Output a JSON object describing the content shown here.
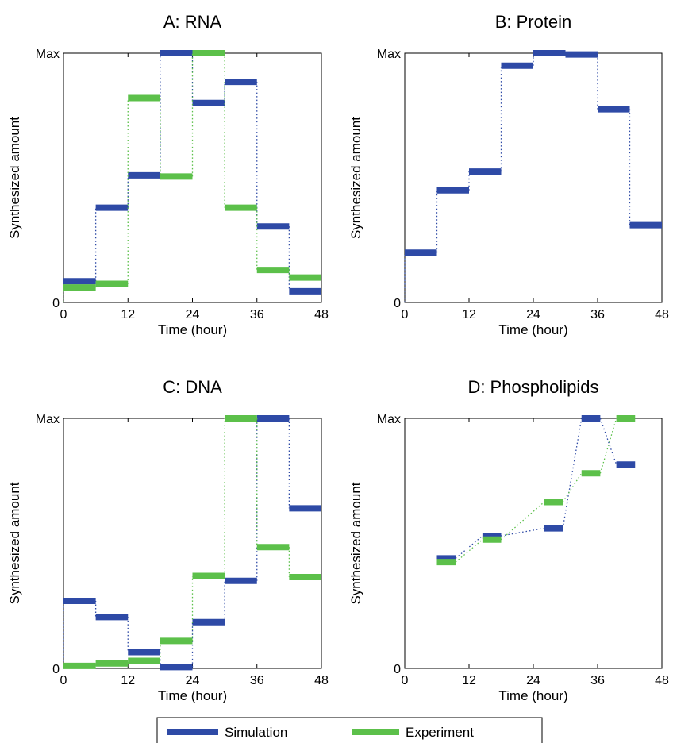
{
  "colors": {
    "simulation": "#2e4aa6",
    "experiment": "#5cc04a"
  },
  "legend": {
    "placement": "bottom-center",
    "items": [
      "Simulation",
      "Experiment"
    ]
  },
  "chart_data": [
    {
      "type": "step",
      "title": "A: RNA",
      "xlabel": "Time (hour)",
      "ylabel": "Synthesized amount",
      "xlim": [
        0,
        48
      ],
      "xticks": [
        0,
        12,
        24,
        36,
        48
      ],
      "ylim": [
        0,
        1
      ],
      "yticks": [
        0,
        1
      ],
      "yticklabels": [
        "0",
        "Max"
      ],
      "grid": false,
      "series": [
        {
          "name": "Simulation",
          "segments": [
            [
              0,
              6,
              0.085
            ],
            [
              6,
              12,
              0.38
            ],
            [
              12,
              18,
              0.51
            ],
            [
              18,
              24,
              1.0
            ],
            [
              24,
              30,
              0.8
            ],
            [
              30,
              36,
              0.885
            ],
            [
              36,
              42,
              0.305
            ],
            [
              42,
              48,
              0.045
            ]
          ]
        },
        {
          "name": "Experiment",
          "segments": [
            [
              0,
              6,
              0.06
            ],
            [
              6,
              12,
              0.075
            ],
            [
              12,
              18,
              0.82
            ],
            [
              18,
              24,
              0.505
            ],
            [
              24,
              30,
              1.0
            ],
            [
              30,
              36,
              0.38
            ],
            [
              36,
              42,
              0.13
            ],
            [
              42,
              48,
              0.1
            ]
          ]
        }
      ]
    },
    {
      "type": "step",
      "title": "B: Protein",
      "xlabel": "Time (hour)",
      "ylabel": "Synthesized amount",
      "xlim": [
        0,
        48
      ],
      "xticks": [
        0,
        12,
        24,
        36,
        48
      ],
      "ylim": [
        0,
        1
      ],
      "yticks": [
        0,
        1
      ],
      "yticklabels": [
        "0",
        "Max"
      ],
      "grid": false,
      "series": [
        {
          "name": "Simulation",
          "segments": [
            [
              0,
              6,
              0.2
            ],
            [
              6,
              12,
              0.45
            ],
            [
              12,
              18,
              0.525
            ],
            [
              18,
              24,
              0.95
            ],
            [
              24,
              30,
              1.0
            ],
            [
              30,
              36,
              0.995
            ],
            [
              36,
              42,
              0.775
            ],
            [
              42,
              48,
              0.31
            ]
          ]
        }
      ]
    },
    {
      "type": "step",
      "title": "C: DNA",
      "xlabel": "Time (hour)",
      "ylabel": "Synthesized amount",
      "xlim": [
        0,
        48
      ],
      "xticks": [
        0,
        12,
        24,
        36,
        48
      ],
      "ylim": [
        0,
        1
      ],
      "yticks": [
        0,
        1
      ],
      "yticklabels": [
        "0",
        "Max"
      ],
      "grid": false,
      "series": [
        {
          "name": "Simulation",
          "segments": [
            [
              0,
              6,
              0.27
            ],
            [
              6,
              12,
              0.205
            ],
            [
              12,
              18,
              0.065
            ],
            [
              18,
              24,
              0.005
            ],
            [
              24,
              30,
              0.185
            ],
            [
              30,
              36,
              0.35
            ],
            [
              36,
              42,
              1.0
            ],
            [
              42,
              48,
              0.64
            ]
          ]
        },
        {
          "name": "Experiment",
          "segments": [
            [
              0,
              6,
              0.01
            ],
            [
              6,
              12,
              0.02
            ],
            [
              12,
              18,
              0.03
            ],
            [
              18,
              24,
              0.11
            ],
            [
              24,
              30,
              0.37
            ],
            [
              30,
              36,
              1.0
            ],
            [
              36,
              42,
              0.485
            ],
            [
              42,
              48,
              0.365
            ]
          ]
        }
      ]
    },
    {
      "type": "segments",
      "title": "D: Phospholipids",
      "xlabel": "Time (hour)",
      "ylabel": "Synthesized amount",
      "xlim": [
        0,
        48
      ],
      "xticks": [
        0,
        12,
        24,
        36,
        48
      ],
      "ylim": [
        0,
        1
      ],
      "yticks": [
        0,
        1
      ],
      "yticklabels": [
        "0",
        "Max"
      ],
      "grid": false,
      "series": [
        {
          "name": "Simulation",
          "segments": [
            [
              6,
              9.5,
              0.44
            ],
            [
              14.5,
              18,
              0.53
            ],
            [
              26,
              29.5,
              0.56
            ],
            [
              33,
              36.5,
              1.0
            ],
            [
              39.5,
              43,
              0.815
            ]
          ]
        },
        {
          "name": "Experiment",
          "segments": [
            [
              6,
              9.5,
              0.425
            ],
            [
              14.5,
              18,
              0.515
            ],
            [
              26,
              29.5,
              0.665
            ],
            [
              33,
              36.5,
              0.78
            ],
            [
              39.5,
              43,
              1.0
            ]
          ]
        }
      ]
    }
  ]
}
